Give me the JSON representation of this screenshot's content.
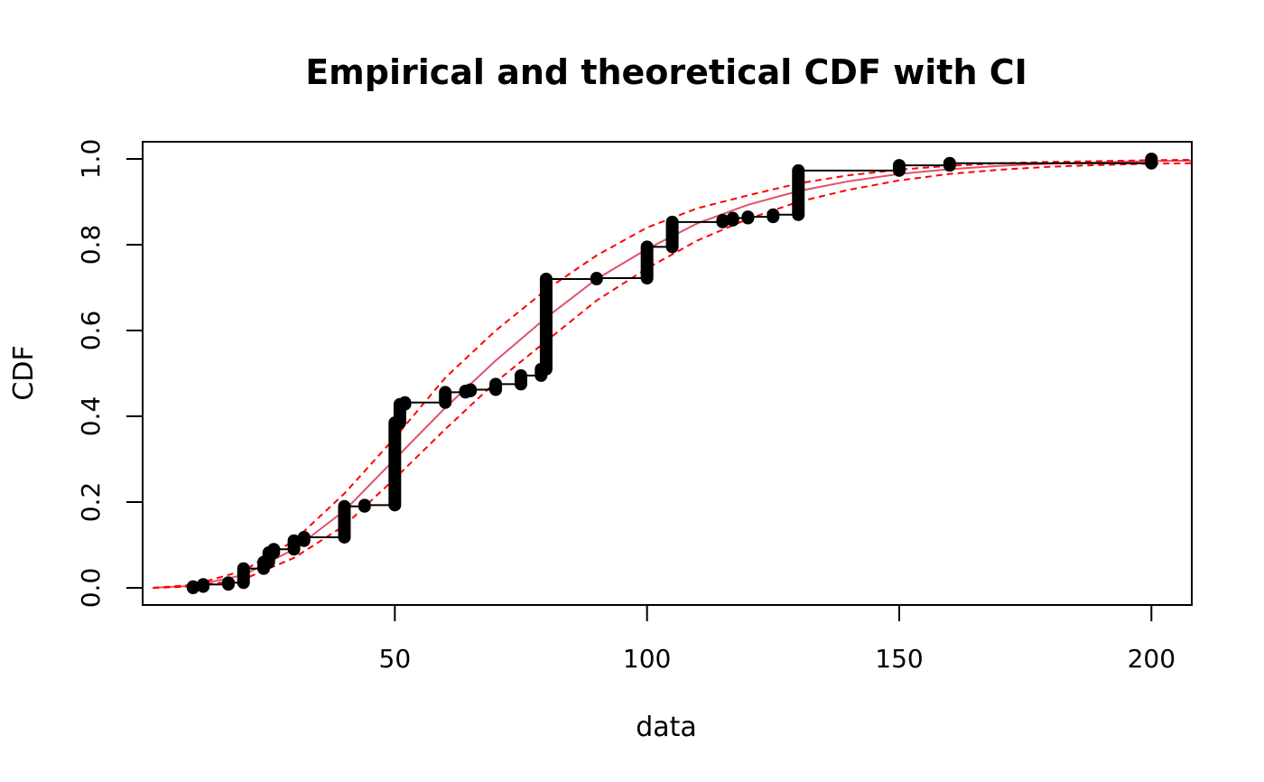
{
  "chart_data": {
    "type": "line",
    "title": "Empirical and theoretical CDF with CI",
    "xlabel": "data",
    "ylabel": "CDF",
    "xlim": [
      0,
      208
    ],
    "ylim": [
      -0.04,
      1.04
    ],
    "x_ticks": [
      50,
      100,
      150,
      200
    ],
    "x_tick_labels": [
      "50",
      "100",
      "150",
      "200"
    ],
    "y_ticks": [
      0,
      0.2,
      0.4,
      0.6,
      0.8,
      1
    ],
    "y_tick_labels": [
      "0.0",
      "0.2",
      "0.4",
      "0.6",
      "0.8",
      "1.0"
    ],
    "grid": false,
    "legend": "none",
    "colors": {
      "empirical": "#000000",
      "theoretical": "#df536b",
      "ci": "#ff0000"
    },
    "empirical_cdf": {
      "name": "",
      "x": [
        10,
        12,
        17,
        20,
        24,
        25,
        26,
        30,
        32,
        40,
        44,
        50,
        51,
        52,
        60,
        64,
        65,
        70,
        75,
        79,
        80,
        90,
        100,
        105,
        115,
        117,
        120,
        125,
        130,
        150,
        160,
        200
      ],
      "y_low": [
        0,
        0.003,
        0.008,
        0.012,
        0.045,
        0.06,
        0.082,
        0.09,
        0.11,
        0.118,
        0.19,
        0.193,
        0.385,
        0.428,
        0.432,
        0.456,
        0.459,
        0.462,
        0.475,
        0.495,
        0.51,
        0.72,
        0.722,
        0.795,
        0.853,
        0.857,
        0.862,
        0.865,
        0.87,
        0.973,
        0.985,
        0.99
      ],
      "y_high": [
        0.003,
        0.008,
        0.012,
        0.045,
        0.06,
        0.082,
        0.09,
        0.11,
        0.118,
        0.19,
        0.193,
        0.385,
        0.428,
        0.432,
        0.456,
        0.459,
        0.462,
        0.475,
        0.495,
        0.51,
        0.72,
        0.722,
        0.795,
        0.853,
        0.857,
        0.862,
        0.865,
        0.87,
        0.973,
        0.985,
        0.99,
        1.0
      ]
    },
    "series": [
      {
        "name": "",
        "style": "solid",
        "x": [
          2,
          10,
          20,
          30,
          40,
          50,
          60,
          70,
          80,
          90,
          100,
          110,
          120,
          130,
          140,
          150,
          160,
          170,
          180,
          190,
          200,
          208
        ],
        "y": [
          0.0,
          0.005,
          0.03,
          0.09,
          0.18,
          0.3,
          0.42,
          0.53,
          0.63,
          0.72,
          0.79,
          0.85,
          0.893,
          0.925,
          0.948,
          0.965,
          0.976,
          0.984,
          0.989,
          0.992,
          0.995,
          0.996
        ]
      },
      {
        "name": "",
        "style": "dashed",
        "x": [
          2,
          10,
          20,
          30,
          40,
          50,
          60,
          70,
          80,
          90,
          100,
          110,
          120,
          130,
          140,
          150,
          160,
          170,
          180,
          190,
          200,
          208
        ],
        "y": [
          0.0,
          0.007,
          0.04,
          0.11,
          0.22,
          0.35,
          0.49,
          0.6,
          0.695,
          0.775,
          0.84,
          0.885,
          0.915,
          0.943,
          0.962,
          0.975,
          0.984,
          0.99,
          0.993,
          0.995,
          0.997,
          0.998
        ]
      },
      {
        "name": "",
        "style": "dashed",
        "x": [
          2,
          10,
          20,
          30,
          40,
          50,
          60,
          70,
          80,
          90,
          100,
          110,
          120,
          130,
          140,
          150,
          160,
          170,
          180,
          190,
          200,
          208
        ],
        "y": [
          0.0,
          0.003,
          0.02,
          0.07,
          0.145,
          0.255,
          0.37,
          0.48,
          0.575,
          0.67,
          0.745,
          0.81,
          0.86,
          0.9,
          0.928,
          0.95,
          0.965,
          0.975,
          0.982,
          0.986,
          0.989,
          0.99
        ]
      }
    ]
  }
}
